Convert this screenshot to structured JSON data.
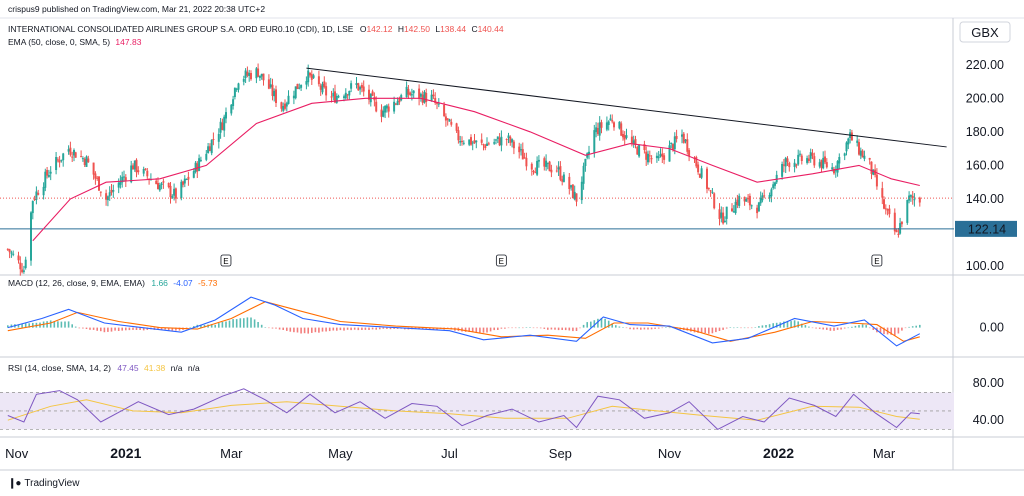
{
  "topline": "crispus9 published on TradingView.com, Mar 21, 2022 20:38 UTC+2",
  "footer": {
    "brand": "TradingView",
    "logo": "tradingview-logo-icon"
  },
  "colors": {
    "up": "#26a69a",
    "down": "#ef5350",
    "ema": "#e91e63",
    "macd": "#2962ff",
    "signal": "#ff6d00",
    "rsi": "#7e57c2",
    "rsi_sma": "#f4c542",
    "trendline": "#131722",
    "support": "#2a6f97",
    "price_line": "#ef5350",
    "rsi_band": "#ede7f6"
  },
  "chart_data": [
    {
      "type": "candlestick",
      "title": "INTERNATIONAL CONSOLIDATED AIRLINES GROUP S.A. ORD EUR0.10 (CDI), 1D, LSE",
      "ohlc": {
        "o_label": "O",
        "open": "142.12",
        "h_label": "H",
        "high": "142.50",
        "l_label": "L",
        "low": "138.44",
        "c_label": "C",
        "close": "140.44"
      },
      "currency": "GBX",
      "ema_label": "EMA (50, close, 0, SMA, 5)",
      "ema_value": "147.83",
      "support_level": 122.14,
      "support_label": "122.14",
      "last_price": 140.44,
      "trendline": [
        [
          "2021-04-12",
          218
        ],
        [
          "2022-04-05",
          171
        ]
      ],
      "earnings_markers": [
        "E",
        "E",
        "E"
      ],
      "earnings_dates": [
        "2021-02-26",
        "2021-07-30",
        "2022-02-25"
      ],
      "ylim": [
        100,
        230
      ],
      "yticks": [
        100,
        120,
        140,
        160,
        180,
        200,
        220
      ],
      "ytick_labels": [
        "100.00",
        "",
        "140.00",
        "160.00",
        "180.00",
        "200.00",
        "220.00"
      ],
      "x_range": [
        "2020-10-26",
        "2022-04-08"
      ],
      "price_path": [
        [
          "2020-10-27",
          110
        ],
        [
          "2020-11-05",
          98
        ],
        [
          "2020-11-10",
          140
        ],
        [
          "2020-11-20",
          158
        ],
        [
          "2020-11-30",
          170
        ],
        [
          "2020-12-10",
          163
        ],
        [
          "2020-12-21",
          140
        ],
        [
          "2021-01-05",
          160
        ],
        [
          "2021-01-20",
          148
        ],
        [
          "2021-01-29",
          142
        ],
        [
          "2021-02-10",
          160
        ],
        [
          "2021-02-24",
          185
        ],
        [
          "2021-03-05",
          212
        ],
        [
          "2021-03-16",
          216
        ],
        [
          "2021-03-29",
          195
        ],
        [
          "2021-04-12",
          214
        ],
        [
          "2021-04-26",
          200
        ],
        [
          "2021-05-10",
          208
        ],
        [
          "2021-05-24",
          192
        ],
        [
          "2021-06-07",
          203
        ],
        [
          "2021-06-21",
          200
        ],
        [
          "2021-07-05",
          177
        ],
        [
          "2021-07-19",
          172
        ],
        [
          "2021-08-02",
          176
        ],
        [
          "2021-08-16",
          160
        ],
        [
          "2021-08-30",
          158
        ],
        [
          "2021-09-10",
          140
        ],
        [
          "2021-09-20",
          180
        ],
        [
          "2021-09-30",
          188
        ],
        [
          "2021-10-11",
          172
        ],
        [
          "2021-10-25",
          162
        ],
        [
          "2021-11-08",
          178
        ],
        [
          "2021-11-22",
          148
        ],
        [
          "2021-11-30",
          128
        ],
        [
          "2021-12-10",
          140
        ],
        [
          "2021-12-21",
          135
        ],
        [
          "2022-01-05",
          162
        ],
        [
          "2022-01-19",
          164
        ],
        [
          "2022-02-01",
          158
        ],
        [
          "2022-02-10",
          177
        ],
        [
          "2022-02-21",
          160
        ],
        [
          "2022-03-01",
          135
        ],
        [
          "2022-03-08",
          118
        ],
        [
          "2022-03-15",
          140
        ],
        [
          "2022-03-21",
          140
        ]
      ],
      "ema_path": [
        [
          "2020-11-10",
          115
        ],
        [
          "2020-12-01",
          140
        ],
        [
          "2020-12-21",
          150
        ],
        [
          "2021-01-20",
          152
        ],
        [
          "2021-02-15",
          160
        ],
        [
          "2021-03-15",
          185
        ],
        [
          "2021-04-15",
          197
        ],
        [
          "2021-05-15",
          200
        ],
        [
          "2021-06-15",
          200
        ],
        [
          "2021-07-15",
          192
        ],
        [
          "2021-08-15",
          180
        ],
        [
          "2021-09-15",
          166
        ],
        [
          "2021-10-10",
          173
        ],
        [
          "2021-11-01",
          170
        ],
        [
          "2021-11-25",
          160
        ],
        [
          "2021-12-20",
          150
        ],
        [
          "2022-01-20",
          155
        ],
        [
          "2022-02-15",
          160
        ],
        [
          "2022-03-05",
          152
        ],
        [
          "2022-03-21",
          148
        ]
      ]
    },
    {
      "type": "line",
      "title": "MACD (12, 26, close, 9, EMA, EMA)",
      "values_text": [
        "1.66",
        "-4.07",
        "-5.73"
      ],
      "ylim": [
        -16,
        26
      ],
      "yticks": [
        0
      ],
      "ytick_labels": [
        "0.00"
      ],
      "series": [
        {
          "name": "MACD",
          "path": [
            [
              "2020-10-27",
              0
            ],
            [
              "2020-11-15",
              6
            ],
            [
              "2020-11-30",
              12
            ],
            [
              "2020-12-20",
              3
            ],
            [
              "2021-01-10",
              0
            ],
            [
              "2021-02-01",
              -3
            ],
            [
              "2021-02-20",
              5
            ],
            [
              "2021-03-12",
              20
            ],
            [
              "2021-03-25",
              15
            ],
            [
              "2021-04-10",
              6
            ],
            [
              "2021-05-01",
              2
            ],
            [
              "2021-06-01",
              0
            ],
            [
              "2021-07-01",
              -2
            ],
            [
              "2021-07-20",
              -8
            ],
            [
              "2021-08-15",
              -5
            ],
            [
              "2021-09-10",
              -9
            ],
            [
              "2021-09-25",
              7
            ],
            [
              "2021-10-10",
              2
            ],
            [
              "2021-11-01",
              1
            ],
            [
              "2021-11-25",
              -10
            ],
            [
              "2021-12-15",
              -7
            ],
            [
              "2022-01-10",
              6
            ],
            [
              "2022-02-01",
              1
            ],
            [
              "2022-02-18",
              5
            ],
            [
              "2022-03-08",
              -12
            ],
            [
              "2022-03-21",
              -4
            ]
          ]
        },
        {
          "name": "Signal",
          "path": [
            [
              "2020-10-27",
              -2
            ],
            [
              "2020-11-20",
              3
            ],
            [
              "2020-12-05",
              10
            ],
            [
              "2020-12-28",
              4
            ],
            [
              "2021-01-20",
              0
            ],
            [
              "2021-02-10",
              -1
            ],
            [
              "2021-03-01",
              6
            ],
            [
              "2021-03-20",
              17
            ],
            [
              "2021-04-05",
              12
            ],
            [
              "2021-05-01",
              4
            ],
            [
              "2021-06-01",
              1
            ],
            [
              "2021-07-05",
              -1
            ],
            [
              "2021-07-30",
              -6
            ],
            [
              "2021-08-25",
              -5
            ],
            [
              "2021-09-15",
              -7
            ],
            [
              "2021-10-01",
              3
            ],
            [
              "2021-10-20",
              3
            ],
            [
              "2021-11-15",
              -2
            ],
            [
              "2021-12-05",
              -9
            ],
            [
              "2021-12-30",
              -3
            ],
            [
              "2022-01-20",
              4
            ],
            [
              "2022-02-10",
              3
            ],
            [
              "2022-02-25",
              2
            ],
            [
              "2022-03-12",
              -9
            ],
            [
              "2022-03-21",
              -6
            ]
          ]
        }
      ]
    },
    {
      "type": "line",
      "title": "RSI (14, close, SMA, 14, 2)",
      "values_text": [
        "47.45",
        "41.38",
        "n/a",
        "n/a"
      ],
      "ylim": [
        25,
        90
      ],
      "yticks": [
        40,
        80
      ],
      "ytick_labels": [
        "40.00",
        "80.00"
      ],
      "bands": [
        30,
        50,
        70
      ],
      "series": [
        {
          "name": "RSI",
          "path": [
            [
              "2020-10-27",
              45
            ],
            [
              "2020-11-05",
              38
            ],
            [
              "2020-11-12",
              68
            ],
            [
              "2020-11-25",
              72
            ],
            [
              "2020-12-05",
              62
            ],
            [
              "2020-12-18",
              38
            ],
            [
              "2021-01-08",
              60
            ],
            [
              "2021-01-25",
              46
            ],
            [
              "2021-02-08",
              52
            ],
            [
              "2021-02-24",
              66
            ],
            [
              "2021-03-08",
              74
            ],
            [
              "2021-03-20",
              62
            ],
            [
              "2021-04-01",
              48
            ],
            [
              "2021-04-14",
              68
            ],
            [
              "2021-04-28",
              48
            ],
            [
              "2021-05-12",
              60
            ],
            [
              "2021-05-26",
              42
            ],
            [
              "2021-06-10",
              58
            ],
            [
              "2021-06-24",
              55
            ],
            [
              "2021-07-08",
              34
            ],
            [
              "2021-07-22",
              45
            ],
            [
              "2021-08-05",
              52
            ],
            [
              "2021-08-20",
              38
            ],
            [
              "2021-09-03",
              45
            ],
            [
              "2021-09-10",
              32
            ],
            [
              "2021-09-22",
              66
            ],
            [
              "2021-10-04",
              62
            ],
            [
              "2021-10-18",
              42
            ],
            [
              "2021-11-01",
              48
            ],
            [
              "2021-11-12",
              60
            ],
            [
              "2021-11-28",
              30
            ],
            [
              "2021-12-12",
              44
            ],
            [
              "2021-12-24",
              38
            ],
            [
              "2022-01-07",
              64
            ],
            [
              "2022-01-21",
              56
            ],
            [
              "2022-02-02",
              44
            ],
            [
              "2022-02-12",
              68
            ],
            [
              "2022-02-24",
              48
            ],
            [
              "2022-03-08",
              32
            ],
            [
              "2022-03-16",
              48
            ],
            [
              "2022-03-21",
              47
            ]
          ]
        },
        {
          "name": "RSI SMA",
          "path": [
            [
              "2020-10-27",
              40
            ],
            [
              "2020-11-20",
              55
            ],
            [
              "2020-12-10",
              62
            ],
            [
              "2021-01-05",
              50
            ],
            [
              "2021-02-01",
              48
            ],
            [
              "2021-03-01",
              56
            ],
            [
              "2021-04-01",
              60
            ],
            [
              "2021-05-01",
              55
            ],
            [
              "2021-06-01",
              50
            ],
            [
              "2021-07-01",
              47
            ],
            [
              "2021-08-01",
              42
            ],
            [
              "2021-09-05",
              42
            ],
            [
              "2021-09-30",
              55
            ],
            [
              "2021-10-25",
              50
            ],
            [
              "2021-11-20",
              45
            ],
            [
              "2021-12-20",
              40
            ],
            [
              "2022-01-20",
              55
            ],
            [
              "2022-02-15",
              54
            ],
            [
              "2022-03-08",
              44
            ],
            [
              "2022-03-21",
              41
            ]
          ]
        }
      ]
    }
  ],
  "x_axis": {
    "labels": [
      "Nov",
      "2021",
      "Mar",
      "May",
      "Jul",
      "Sep",
      "Nov",
      "2022",
      "Mar"
    ],
    "dates": [
      "2020-11-01",
      "2021-01-01",
      "2021-03-01",
      "2021-05-01",
      "2021-07-01",
      "2021-09-01",
      "2021-11-01",
      "2022-01-01",
      "2022-03-01"
    ],
    "year_flags": [
      false,
      true,
      false,
      false,
      false,
      false,
      false,
      true,
      false
    ]
  }
}
